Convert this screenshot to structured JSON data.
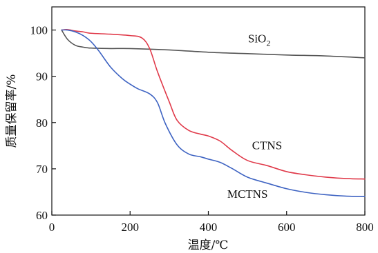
{
  "chart_data": {
    "type": "line",
    "xlabel": "温度/℃",
    "ylabel": "质量保留率/%",
    "xlim": [
      0,
      800
    ],
    "ylim": [
      60,
      105
    ],
    "x_ticks": [
      "0",
      "200",
      "400",
      "600",
      "800"
    ],
    "y_ticks": [
      "60",
      "70",
      "80",
      "90",
      "100"
    ],
    "grid": false,
    "series": [
      {
        "name": "SiO2",
        "color": "#555555",
        "x": [
          25,
          40,
          60,
          80,
          100,
          150,
          200,
          300,
          400,
          500,
          600,
          700,
          800
        ],
        "y": [
          100,
          98,
          96.7,
          96.3,
          96.1,
          96.0,
          96.0,
          95.7,
          95.2,
          94.9,
          94.6,
          94.4,
          94.0
        ]
      },
      {
        "name": "CTNS",
        "color": "#e03a4a",
        "x": [
          25,
          40,
          60,
          80,
          100,
          150,
          200,
          230,
          250,
          270,
          300,
          320,
          350,
          380,
          400,
          430,
          460,
          500,
          550,
          600,
          650,
          700,
          750,
          800
        ],
        "y": [
          100,
          100.1,
          99.8,
          99.6,
          99.3,
          99.1,
          98.8,
          98.3,
          96,
          91,
          84.5,
          80.5,
          78.3,
          77.5,
          77.1,
          76.0,
          74.0,
          71.8,
          70.7,
          69.4,
          68.7,
          68.2,
          67.9,
          67.8
        ]
      },
      {
        "name": "MCTNS",
        "color": "#3e63c2",
        "x": [
          25,
          40,
          60,
          80,
          100,
          120,
          150,
          180,
          200,
          220,
          250,
          270,
          290,
          320,
          350,
          380,
          400,
          430,
          460,
          500,
          550,
          600,
          650,
          700,
          750,
          800
        ],
        "y": [
          100,
          100,
          99.6,
          98.8,
          97.5,
          95.5,
          92,
          89.5,
          88.3,
          87.3,
          86.2,
          84.3,
          79.8,
          75.2,
          73.2,
          72.6,
          72.1,
          71.4,
          70.1,
          68.2,
          66.9,
          65.7,
          64.9,
          64.4,
          64.1,
          64.0
        ]
      }
    ],
    "series_labels": [
      {
        "series": "SiO2",
        "text": "SiO",
        "subscript": "2",
        "x": 530,
        "y": 97.3
      },
      {
        "series": "CTNS",
        "text": "CTNS",
        "x": 550,
        "y": 74.2
      },
      {
        "series": "MCTNS",
        "text": "MCTNS",
        "x": 500,
        "y": 63.7
      }
    ]
  }
}
